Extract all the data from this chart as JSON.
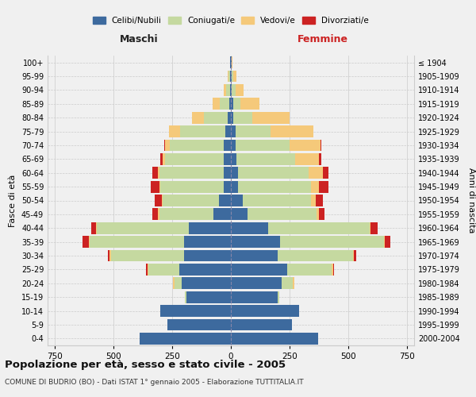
{
  "age_groups": [
    "0-4",
    "5-9",
    "10-14",
    "15-19",
    "20-24",
    "25-29",
    "30-34",
    "35-39",
    "40-44",
    "45-49",
    "50-54",
    "55-59",
    "60-64",
    "65-69",
    "70-74",
    "75-79",
    "80-84",
    "85-89",
    "90-94",
    "95-99",
    "100+"
  ],
  "birth_years": [
    "2000-2004",
    "1995-1999",
    "1990-1994",
    "1985-1989",
    "1980-1984",
    "1975-1979",
    "1970-1974",
    "1965-1969",
    "1960-1964",
    "1955-1959",
    "1950-1954",
    "1945-1949",
    "1940-1944",
    "1935-1939",
    "1930-1934",
    "1925-1929",
    "1920-1924",
    "1915-1919",
    "1910-1914",
    "1905-1909",
    "≤ 1904"
  ],
  "male_celibi": [
    390,
    270,
    300,
    190,
    210,
    220,
    200,
    200,
    180,
    75,
    50,
    30,
    30,
    30,
    30,
    25,
    15,
    8,
    5,
    5,
    2
  ],
  "male_coniugati": [
    0,
    0,
    0,
    5,
    30,
    130,
    310,
    400,
    390,
    230,
    240,
    270,
    275,
    250,
    230,
    190,
    100,
    40,
    15,
    5,
    0
  ],
  "male_vedovi": [
    0,
    0,
    0,
    0,
    5,
    5,
    5,
    5,
    5,
    5,
    5,
    5,
    5,
    10,
    20,
    50,
    50,
    30,
    10,
    5,
    0
  ],
  "male_divorziati": [
    0,
    0,
    0,
    0,
    0,
    5,
    10,
    25,
    20,
    25,
    30,
    35,
    25,
    10,
    5,
    0,
    0,
    0,
    0,
    0,
    0
  ],
  "female_celibi": [
    370,
    260,
    290,
    200,
    215,
    240,
    200,
    210,
    160,
    70,
    50,
    30,
    30,
    25,
    20,
    20,
    10,
    10,
    5,
    5,
    2
  ],
  "female_coniugati": [
    0,
    0,
    0,
    5,
    50,
    190,
    320,
    440,
    430,
    295,
    290,
    310,
    300,
    250,
    230,
    150,
    80,
    30,
    15,
    5,
    0
  ],
  "female_vedovi": [
    0,
    0,
    0,
    0,
    5,
    5,
    5,
    5,
    5,
    10,
    20,
    35,
    60,
    100,
    130,
    180,
    160,
    80,
    35,
    15,
    5
  ],
  "female_divorziati": [
    0,
    0,
    0,
    0,
    0,
    5,
    10,
    25,
    30,
    25,
    30,
    40,
    25,
    10,
    5,
    0,
    0,
    0,
    0,
    0,
    0
  ],
  "colors": {
    "celibi": "#3d6a9e",
    "coniugati": "#c5d9a0",
    "vedovi": "#f5c97a",
    "divorziati": "#cc2222"
  },
  "title": "Popolazione per età, sesso e stato civile - 2005",
  "subtitle": "COMUNE DI BUDRIO (BO) - Dati ISTAT 1° gennaio 2005 - Elaborazione TUTTITALIA.IT",
  "xlabel_left": "Maschi",
  "xlabel_right": "Femmine",
  "ylabel_left": "Fasce di età",
  "ylabel_right": "Anni di nascita",
  "xlim": 780,
  "bg_color": "#f0f0f0"
}
